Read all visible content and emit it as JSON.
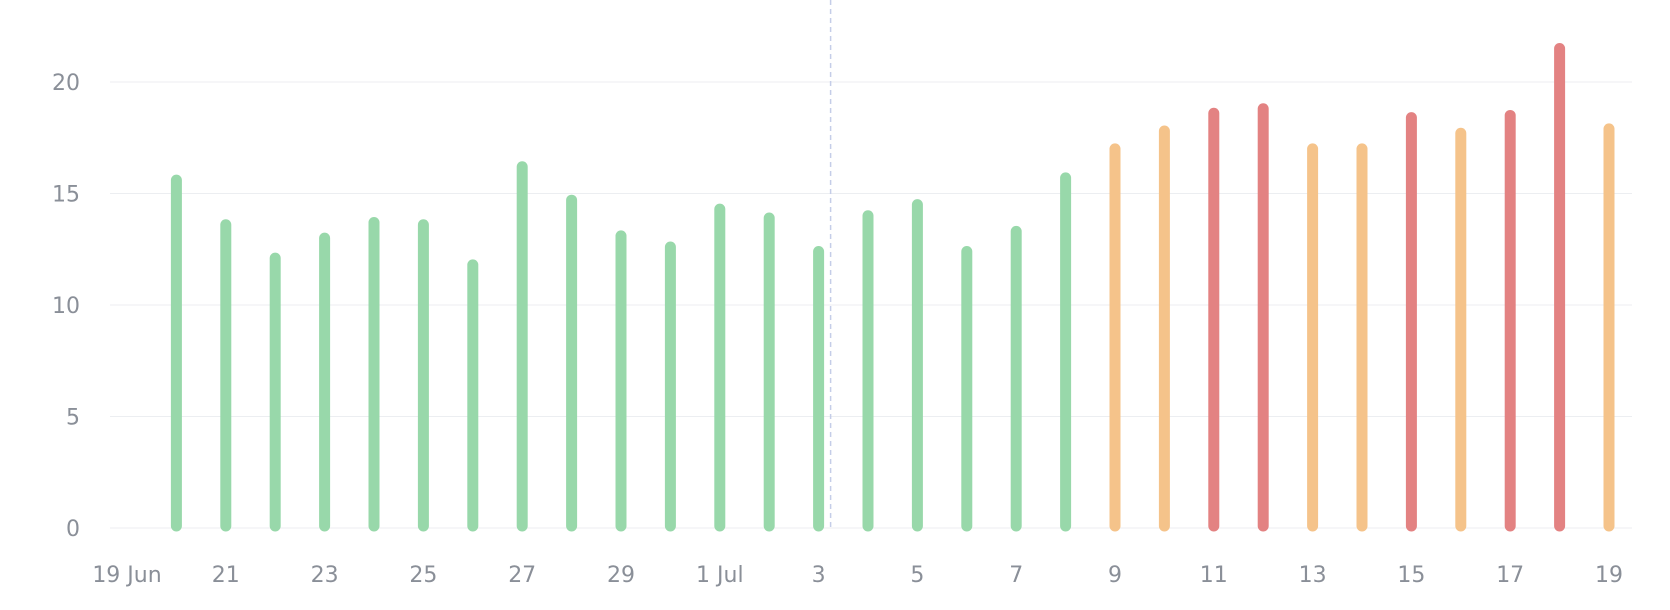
{
  "chart_data": {
    "type": "bar",
    "title": "",
    "xlabel": "",
    "ylabel": "",
    "ylim": [
      0,
      22
    ],
    "grid": true,
    "y_ticks": [
      0,
      5,
      10,
      15,
      20
    ],
    "x_ticks": [
      {
        "date": "2021-06-19",
        "label": "19 Jun"
      },
      {
        "date": "2021-06-21",
        "label": "21"
      },
      {
        "date": "2021-06-23",
        "label": "23"
      },
      {
        "date": "2021-06-25",
        "label": "25"
      },
      {
        "date": "2021-06-27",
        "label": "27"
      },
      {
        "date": "2021-06-29",
        "label": "29"
      },
      {
        "date": "2021-07-01",
        "label": "1 Jul"
      },
      {
        "date": "2021-07-03",
        "label": "3"
      },
      {
        "date": "2021-07-05",
        "label": "5"
      },
      {
        "date": "2021-07-07",
        "label": "7"
      },
      {
        "date": "2021-07-09",
        "label": "9"
      },
      {
        "date": "2021-07-11",
        "label": "11"
      },
      {
        "date": "2021-07-13",
        "label": "13"
      },
      {
        "date": "2021-07-15",
        "label": "15"
      },
      {
        "date": "2021-07-17",
        "label": "17"
      },
      {
        "date": "2021-07-19",
        "label": "19"
      }
    ],
    "marker_date": "2021-07-03",
    "colors": {
      "green": "#98d8aa",
      "orange": "#f5c38a",
      "red": "#e38282"
    },
    "points": [
      {
        "date": "2021-06-20",
        "value": 15.6,
        "color": "green"
      },
      {
        "date": "2021-06-21",
        "value": 13.6,
        "color": "green"
      },
      {
        "date": "2021-06-22",
        "value": 12.1,
        "color": "green"
      },
      {
        "date": "2021-06-23",
        "value": 13.0,
        "color": "green"
      },
      {
        "date": "2021-06-24",
        "value": 13.7,
        "color": "green"
      },
      {
        "date": "2021-06-25",
        "value": 13.6,
        "color": "green"
      },
      {
        "date": "2021-06-26",
        "value": 11.8,
        "color": "green"
      },
      {
        "date": "2021-06-27",
        "value": 16.2,
        "color": "green"
      },
      {
        "date": "2021-06-28",
        "value": 14.7,
        "color": "green"
      },
      {
        "date": "2021-06-29",
        "value": 13.1,
        "color": "green"
      },
      {
        "date": "2021-06-30",
        "value": 12.6,
        "color": "green"
      },
      {
        "date": "2021-07-01",
        "value": 14.3,
        "color": "green"
      },
      {
        "date": "2021-07-02",
        "value": 13.9,
        "color": "green"
      },
      {
        "date": "2021-07-03",
        "value": 12.4,
        "color": "green"
      },
      {
        "date": "2021-07-04",
        "value": 14.0,
        "color": "green"
      },
      {
        "date": "2021-07-05",
        "value": 14.5,
        "color": "green"
      },
      {
        "date": "2021-07-06",
        "value": 12.4,
        "color": "green"
      },
      {
        "date": "2021-07-07",
        "value": 13.3,
        "color": "green"
      },
      {
        "date": "2021-07-08",
        "value": 15.7,
        "color": "green"
      },
      {
        "date": "2021-07-09",
        "value": 17.0,
        "color": "orange"
      },
      {
        "date": "2021-07-10",
        "value": 17.8,
        "color": "orange"
      },
      {
        "date": "2021-07-11",
        "value": 18.6,
        "color": "red"
      },
      {
        "date": "2021-07-12",
        "value": 18.8,
        "color": "red"
      },
      {
        "date": "2021-07-13",
        "value": 17.0,
        "color": "orange"
      },
      {
        "date": "2021-07-14",
        "value": 17.0,
        "color": "orange"
      },
      {
        "date": "2021-07-15",
        "value": 18.4,
        "color": "red"
      },
      {
        "date": "2021-07-16",
        "value": 17.7,
        "color": "orange"
      },
      {
        "date": "2021-07-17",
        "value": 18.5,
        "color": "red"
      },
      {
        "date": "2021-07-18",
        "value": 21.5,
        "color": "red"
      },
      {
        "date": "2021-07-19",
        "value": 17.9,
        "color": "orange"
      }
    ]
  }
}
